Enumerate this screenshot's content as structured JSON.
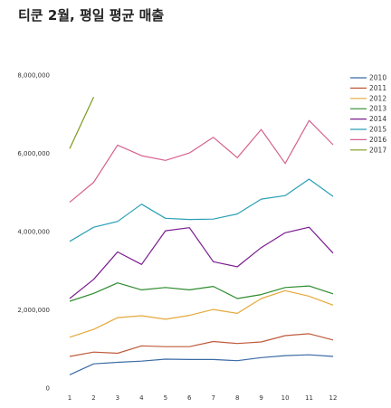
{
  "chart_data": {
    "type": "line",
    "title": "티쿤 2월, 평일 평균 매출",
    "xlabel": "",
    "ylabel": "",
    "x": [
      1,
      2,
      3,
      4,
      5,
      6,
      7,
      8,
      9,
      10,
      11,
      12
    ],
    "x_tick_labels": [
      "1",
      "2",
      "3",
      "4",
      "5",
      "6",
      "7",
      "8",
      "9",
      "10",
      "11",
      "12"
    ],
    "ylim": [
      0,
      8000000
    ],
    "y_tick_labels": [
      "0",
      "2,000,000",
      "4,000,000",
      "6,000,000",
      "8,000,000"
    ],
    "y_tick_values": [
      0,
      2000000,
      4000000,
      6000000,
      8000000
    ],
    "grid": false,
    "legend_position": "right",
    "series": [
      {
        "name": "2010",
        "color": "#3b6ba5",
        "values": [
          340000,
          620000,
          660000,
          690000,
          740000,
          730000,
          730000,
          700000,
          780000,
          830000,
          850000,
          810000
        ]
      },
      {
        "name": "2011",
        "color": "#bf5b3b",
        "values": [
          810000,
          920000,
          890000,
          1080000,
          1060000,
          1060000,
          1190000,
          1140000,
          1180000,
          1340000,
          1390000,
          1230000
        ]
      },
      {
        "name": "2012",
        "color": "#e5a83b",
        "values": [
          1300000,
          1500000,
          1800000,
          1850000,
          1760000,
          1860000,
          2010000,
          1910000,
          2290000,
          2490000,
          2350000,
          2120000
        ]
      },
      {
        "name": "2013",
        "color": "#2e8b2e",
        "values": [
          2220000,
          2420000,
          2690000,
          2510000,
          2570000,
          2510000,
          2600000,
          2290000,
          2390000,
          2570000,
          2610000,
          2410000
        ]
      },
      {
        "name": "2014",
        "color": "#7a1c8f",
        "values": [
          2290000,
          2780000,
          3480000,
          3160000,
          4020000,
          4100000,
          3230000,
          3100000,
          3590000,
          3970000,
          4110000,
          3450000
        ]
      },
      {
        "name": "2015",
        "color": "#2a9fb5",
        "values": [
          3750000,
          4110000,
          4260000,
          4700000,
          4340000,
          4310000,
          4320000,
          4450000,
          4830000,
          4920000,
          5340000,
          4900000
        ]
      },
      {
        "name": "2016",
        "color": "#d6628f",
        "values": [
          4750000,
          5260000,
          6210000,
          5940000,
          5820000,
          6010000,
          6410000,
          5890000,
          6610000,
          5740000,
          6840000,
          6220000
        ]
      },
      {
        "name": "2017",
        "color": "#7a9a1c",
        "values": [
          6120000,
          7440000,
          null,
          null,
          null,
          null,
          null,
          null,
          null,
          null,
          null,
          null
        ]
      }
    ]
  }
}
